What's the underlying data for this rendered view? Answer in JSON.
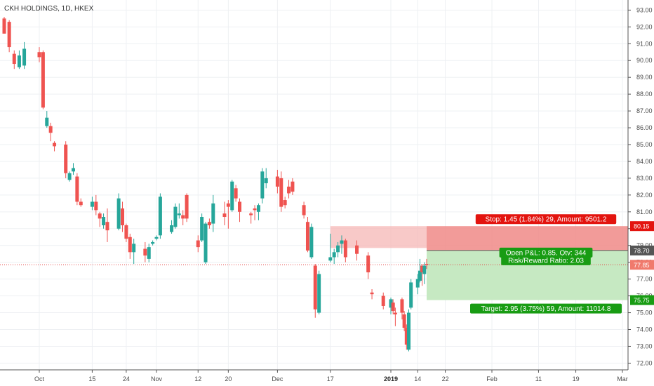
{
  "title": "CKH HOLDINGS, 1D, HKEX",
  "colors": {
    "up": "#26a69a",
    "down": "#ef5350",
    "grid": "#eef0f3",
    "axis": "#555555",
    "stop_zone": "#f5b7b5",
    "target_zone": "#c6e9c2",
    "stop_label": "#e3140f",
    "target_label": "#189c13",
    "current_line": "#e34040",
    "entry_line": "#555555"
  },
  "chart_data": {
    "type": "candlestick",
    "title": "CKH HOLDINGS, 1D, HKEX",
    "ylim": [
      71.6,
      93.6
    ],
    "y_ticks": [
      72,
      73,
      74,
      75,
      76,
      77,
      78,
      79,
      80,
      81,
      82,
      83,
      84,
      85,
      86,
      87,
      88,
      89,
      90,
      91,
      92,
      93
    ],
    "x_ticks": [
      {
        "label": "Oct",
        "date": "2018-10-01"
      },
      {
        "label": "15",
        "date": "2018-10-15"
      },
      {
        "label": "24",
        "date": "2018-10-24"
      },
      {
        "label": "Nov",
        "date": "2018-11-01"
      },
      {
        "label": "12",
        "date": "2018-11-12"
      },
      {
        "label": "20",
        "date": "2018-11-20"
      },
      {
        "label": "Dec",
        "date": "2018-12-03"
      },
      {
        "label": "17",
        "date": "2018-12-17"
      },
      {
        "label": "2019",
        "date": "2019-01-02",
        "bold": true
      },
      {
        "label": "14",
        "date": "2019-01-14"
      },
      {
        "label": "22",
        "date": "2019-01-22"
      },
      {
        "label": "Feb",
        "date": "2019-02-01"
      },
      {
        "label": "11",
        "date": "2019-02-11"
      },
      {
        "label": "19",
        "date": "2019-02-19"
      },
      {
        "label": "Mar",
        "date": "2019-03-01"
      }
    ],
    "candles": [
      {
        "date": "2018-09-24",
        "o": 92.5,
        "h": 92.6,
        "l": 91.6,
        "c": 91.6
      },
      {
        "date": "2018-09-25",
        "o": 92.3,
        "h": 92.4,
        "l": 90.5,
        "c": 90.8
      },
      {
        "date": "2018-09-26",
        "o": 90.4,
        "h": 90.6,
        "l": 89.5,
        "c": 89.8
      },
      {
        "date": "2018-09-27",
        "o": 89.6,
        "h": 90.6,
        "l": 89.5,
        "c": 90.3
      },
      {
        "date": "2018-09-28",
        "o": 89.7,
        "h": 91.1,
        "l": 89.5,
        "c": 90.7
      },
      {
        "date": "2018-10-01",
        "o": 90.5,
        "h": 90.8,
        "l": 89.9,
        "c": 90.2
      },
      {
        "date": "2018-10-02",
        "o": 90.5,
        "h": 90.6,
        "l": 87.1,
        "c": 87.2
      },
      {
        "date": "2018-10-03",
        "o": 86.1,
        "h": 87.0,
        "l": 86.0,
        "c": 86.6
      },
      {
        "date": "2018-10-04",
        "o": 86.1,
        "h": 86.3,
        "l": 85.2,
        "c": 85.7
      },
      {
        "date": "2018-10-05",
        "o": 85.1,
        "h": 85.2,
        "l": 84.6,
        "c": 84.9
      },
      {
        "date": "2018-10-08",
        "o": 85.0,
        "h": 85.2,
        "l": 83.0,
        "c": 83.3
      },
      {
        "date": "2018-10-09",
        "o": 82.9,
        "h": 83.4,
        "l": 82.8,
        "c": 83.3
      },
      {
        "date": "2018-10-10",
        "o": 83.4,
        "h": 83.9,
        "l": 83.2,
        "c": 83.6
      },
      {
        "date": "2018-10-11",
        "o": 83.1,
        "h": 83.3,
        "l": 81.4,
        "c": 81.6
      },
      {
        "date": "2018-10-12",
        "o": 81.6,
        "h": 81.8,
        "l": 81.3,
        "c": 81.4
      },
      {
        "date": "2018-10-15",
        "o": 81.3,
        "h": 81.9,
        "l": 81.1,
        "c": 81.6
      },
      {
        "date": "2018-10-16",
        "o": 81.6,
        "h": 82.0,
        "l": 80.8,
        "c": 81.1
      },
      {
        "date": "2018-10-17",
        "o": 80.9,
        "h": 81.0,
        "l": 80.1,
        "c": 80.6
      },
      {
        "date": "2018-10-18",
        "o": 80.2,
        "h": 80.9,
        "l": 80.0,
        "c": 80.7
      },
      {
        "date": "2018-10-19",
        "o": 80.4,
        "h": 81.2,
        "l": 79.2,
        "c": 79.9
      },
      {
        "date": "2018-10-22",
        "o": 80.0,
        "h": 82.1,
        "l": 79.9,
        "c": 81.8
      },
      {
        "date": "2018-10-23",
        "o": 81.2,
        "h": 81.6,
        "l": 79.8,
        "c": 80.2
      },
      {
        "date": "2018-10-24",
        "o": 80.2,
        "h": 80.3,
        "l": 79.2,
        "c": 79.4
      },
      {
        "date": "2018-10-25",
        "o": 79.5,
        "h": 79.7,
        "l": 78.2,
        "c": 78.6
      },
      {
        "date": "2018-10-26",
        "o": 78.6,
        "h": 79.4,
        "l": 77.9,
        "c": 79.1
      },
      {
        "date": "2018-10-29",
        "o": 78.8,
        "h": 79.2,
        "l": 78.0,
        "c": 78.4
      },
      {
        "date": "2018-10-30",
        "o": 78.2,
        "h": 79.1,
        "l": 78.0,
        "c": 78.9
      },
      {
        "date": "2018-10-31",
        "o": 79.1,
        "h": 79.3,
        "l": 79.0,
        "c": 79.2
      },
      {
        "date": "2018-11-01",
        "o": 79.4,
        "h": 79.6,
        "l": 79.3,
        "c": 79.5
      },
      {
        "date": "2018-11-02",
        "o": 79.6,
        "h": 82.1,
        "l": 79.4,
        "c": 81.9
      },
      {
        "date": "2018-11-05",
        "o": 79.8,
        "h": 80.5,
        "l": 79.7,
        "c": 80.2
      },
      {
        "date": "2018-11-06",
        "o": 80.1,
        "h": 81.5,
        "l": 80.0,
        "c": 81.3
      },
      {
        "date": "2018-11-07",
        "o": 80.8,
        "h": 81.5,
        "l": 80.6,
        "c": 80.9
      },
      {
        "date": "2018-11-08",
        "o": 80.8,
        "h": 81.1,
        "l": 80.2,
        "c": 80.6
      },
      {
        "date": "2018-11-09",
        "o": 82.0,
        "h": 82.1,
        "l": 80.4,
        "c": 80.6
      },
      {
        "date": "2018-11-12",
        "o": 79.3,
        "h": 79.6,
        "l": 78.6,
        "c": 78.9
      },
      {
        "date": "2018-11-13",
        "o": 79.3,
        "h": 80.9,
        "l": 79.2,
        "c": 80.7
      },
      {
        "date": "2018-11-14",
        "o": 78.0,
        "h": 80.4,
        "l": 77.9,
        "c": 80.3
      },
      {
        "date": "2018-11-15",
        "o": 80.4,
        "h": 80.6,
        "l": 80.0,
        "c": 80.2
      },
      {
        "date": "2018-11-16",
        "o": 80.3,
        "h": 82.0,
        "l": 79.8,
        "c": 81.5
      },
      {
        "date": "2018-11-19",
        "o": 80.9,
        "h": 81.6,
        "l": 80.2,
        "c": 80.7
      },
      {
        "date": "2018-11-20",
        "o": 81.5,
        "h": 81.7,
        "l": 80.0,
        "c": 81.3
      },
      {
        "date": "2018-11-21",
        "o": 81.1,
        "h": 82.9,
        "l": 81.0,
        "c": 82.8
      },
      {
        "date": "2018-11-22",
        "o": 82.4,
        "h": 82.6,
        "l": 81.6,
        "c": 81.8
      },
      {
        "date": "2018-11-23",
        "o": 81.6,
        "h": 81.8,
        "l": 80.4,
        "c": 81.0
      },
      {
        "date": "2018-11-26",
        "o": 80.9,
        "h": 81.0,
        "l": 80.3,
        "c": 80.8
      },
      {
        "date": "2018-11-27",
        "o": 81.2,
        "h": 81.4,
        "l": 80.5,
        "c": 81.1
      },
      {
        "date": "2018-11-28",
        "o": 81.0,
        "h": 81.5,
        "l": 80.5,
        "c": 81.4
      },
      {
        "date": "2018-11-29",
        "o": 81.8,
        "h": 83.6,
        "l": 81.5,
        "c": 83.4
      },
      {
        "date": "2018-11-30",
        "o": 82.7,
        "h": 83.6,
        "l": 82.4,
        "c": 83.0
      },
      {
        "date": "2018-12-03",
        "o": 83.1,
        "h": 83.5,
        "l": 82.1,
        "c": 82.5
      },
      {
        "date": "2018-12-04",
        "o": 83.0,
        "h": 83.4,
        "l": 81.0,
        "c": 81.3
      },
      {
        "date": "2018-12-05",
        "o": 81.7,
        "h": 81.9,
        "l": 81.2,
        "c": 81.4
      },
      {
        "date": "2018-12-06",
        "o": 82.5,
        "h": 82.9,
        "l": 81.8,
        "c": 82.1
      },
      {
        "date": "2018-12-07",
        "o": 82.8,
        "h": 83.0,
        "l": 82.0,
        "c": 82.2
      },
      {
        "date": "2018-12-10",
        "o": 81.4,
        "h": 81.6,
        "l": 80.6,
        "c": 80.8
      },
      {
        "date": "2018-12-11",
        "o": 80.4,
        "h": 80.7,
        "l": 78.6,
        "c": 78.7
      },
      {
        "date": "2018-12-12",
        "o": 78.3,
        "h": 80.3,
        "l": 78.2,
        "c": 80.1
      },
      {
        "date": "2018-12-13",
        "o": 77.8,
        "h": 77.9,
        "l": 74.7,
        "c": 75.2
      },
      {
        "date": "2018-12-14",
        "o": 75.0,
        "h": 77.5,
        "l": 74.9,
        "c": 77.3
      },
      {
        "date": "2018-12-17",
        "o": 78.1,
        "h": 79.7,
        "l": 78.0,
        "c": 78.3
      },
      {
        "date": "2018-12-18",
        "o": 78.3,
        "h": 78.8,
        "l": 77.9,
        "c": 78.6
      },
      {
        "date": "2018-12-19",
        "o": 78.6,
        "h": 79.2,
        "l": 78.3,
        "c": 79.0
      },
      {
        "date": "2018-12-20",
        "o": 79.1,
        "h": 79.6,
        "l": 78.5,
        "c": 79.3
      },
      {
        "date": "2018-12-21",
        "o": 79.3,
        "h": 79.4,
        "l": 78.0,
        "c": 78.3
      },
      {
        "date": "2018-12-24",
        "o": 79.0,
        "h": 79.3,
        "l": 78.1,
        "c": 78.5
      },
      {
        "date": "2018-12-27",
        "o": 78.4,
        "h": 78.6,
        "l": 77.0,
        "c": 77.4
      },
      {
        "date": "2018-12-28",
        "o": 76.2,
        "h": 76.4,
        "l": 75.8,
        "c": 76.1
      },
      {
        "date": "2018-12-31",
        "o": 76.0,
        "h": 76.2,
        "l": 75.2,
        "c": 75.4
      },
      {
        "date": "2019-01-02",
        "o": 75.3,
        "h": 75.9,
        "l": 74.9,
        "c": 75.8
      },
      {
        "date": "2019-01-03",
        "o": 75.6,
        "h": 75.8,
        "l": 74.9,
        "c": 75.1
      },
      {
        "date": "2019-01-04",
        "o": 75.0,
        "h": 75.3,
        "l": 74.2,
        "c": 74.9
      },
      {
        "date": "2019-01-07",
        "o": 75.8,
        "h": 75.9,
        "l": 74.6,
        "c": 75.0
      },
      {
        "date": "2019-01-08",
        "o": 74.9,
        "h": 75.1,
        "l": 73.9,
        "c": 74.1
      },
      {
        "date": "2019-01-09",
        "o": 74.1,
        "h": 74.3,
        "l": 72.8,
        "c": 73.1
      },
      {
        "date": "2019-01-10",
        "o": 72.8,
        "h": 75.2,
        "l": 72.7,
        "c": 75.0
      },
      {
        "date": "2019-01-11",
        "o": 75.3,
        "h": 77.0,
        "l": 75.2,
        "c": 76.8
      },
      {
        "date": "2019-01-14",
        "o": 76.5,
        "h": 77.3,
        "l": 76.1,
        "c": 77.0
      },
      {
        "date": "2019-01-15",
        "o": 76.9,
        "h": 78.2,
        "l": 76.8,
        "c": 77.5
      },
      {
        "date": "2019-01-16",
        "o": 77.8,
        "h": 77.9,
        "l": 76.6,
        "c": 77.4
      },
      {
        "date": "2019-01-17",
        "o": 77.3,
        "h": 78.0,
        "l": 76.7,
        "c": 77.8
      },
      {
        "date": "2019-01-18",
        "o": 77.9,
        "h": 78.2,
        "l": 77.6,
        "c": 77.85
      }
    ],
    "position": {
      "start_date": "2019-01-18",
      "end_date": "2019-03-05",
      "entry_price": 78.7,
      "stop_price": 80.15,
      "target_price": 75.75,
      "current_price": 77.85,
      "stop_label": "Stop: 1.45 (1.84%) 29, Amount: 9501.2",
      "target_label": "Target: 2.95 (3.75%) 59, Amount: 11014.8",
      "pnl_label": "Open P&L: 0.85, Qty: 344",
      "ratio_label": "Risk/Reward Ratio: 2.03",
      "stop_tag": "80.15",
      "entry_tag": "78.70",
      "current_tag": "77.85",
      "target_tag": "75.75"
    },
    "stop_zone_past": {
      "start_date": "2018-12-17",
      "end_date": "2019-01-18",
      "low": 78.85,
      "high": 80.15
    }
  }
}
